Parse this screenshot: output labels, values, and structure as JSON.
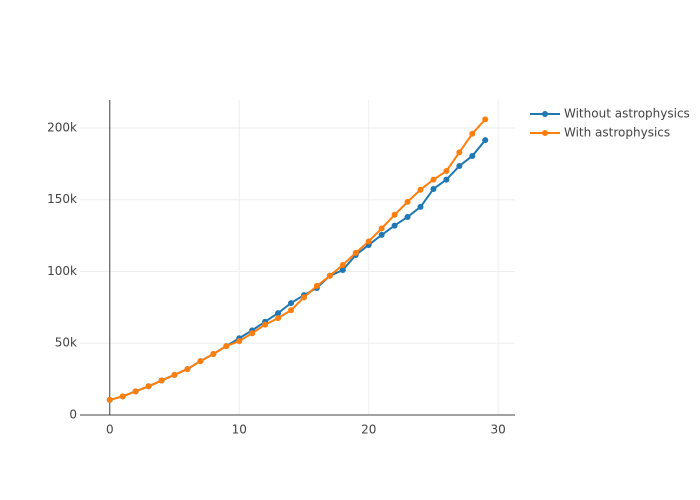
{
  "chart_data": {
    "type": "line",
    "x": [
      0,
      1,
      2,
      3,
      4,
      5,
      6,
      7,
      8,
      9,
      10,
      11,
      12,
      13,
      14,
      15,
      16,
      17,
      18,
      19,
      20,
      21,
      22,
      23,
      24,
      25,
      26,
      27,
      28,
      29
    ],
    "series": [
      {
        "name": "Without astrophysics",
        "color": "#1f77b4",
        "values": [
          10500,
          13000,
          16500,
          20000,
          24000,
          28000,
          32000,
          37500,
          42500,
          48000,
          53500,
          59000,
          65000,
          71000,
          78000,
          83500,
          88500,
          97000,
          101000,
          111500,
          118500,
          125500,
          132000,
          138000,
          145000,
          157500,
          164000,
          173500,
          180500,
          191500
        ]
      },
      {
        "name": "With astrophysics",
        "color": "#ff7f0e",
        "values": [
          10500,
          13000,
          16500,
          20000,
          24000,
          28000,
          32000,
          37500,
          42500,
          48000,
          51500,
          57000,
          63000,
          67500,
          73000,
          82000,
          90000,
          97000,
          104500,
          113000,
          121000,
          130000,
          139500,
          148500,
          157000,
          164000,
          170000,
          183000,
          196000,
          206000
        ]
      }
    ],
    "xlim": [
      -2.3,
      31.3
    ],
    "xticks": [
      0,
      10,
      20,
      30
    ],
    "ylim": [
      0,
      219500
    ],
    "yticks": [
      0,
      {
        "value": 50000,
        "label": "50k"
      },
      {
        "value": 100000,
        "label": "100k"
      },
      {
        "value": 150000,
        "label": "150k"
      },
      {
        "value": 200000,
        "label": "200k"
      }
    ],
    "grid": true
  }
}
